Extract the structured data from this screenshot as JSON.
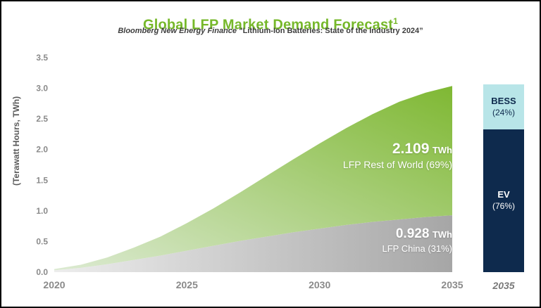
{
  "header": {
    "title": "Global LFP Market Demand Forecast",
    "footnote": "1",
    "source": "Bloomberg New Energy Finance",
    "source_quote": "“Lithium-Ion Batteries: State of the Industry 2024”"
  },
  "colors": {
    "title_green": "#76b82a",
    "axis_text": "#8a8a8a",
    "axis_title": "#595959",
    "green_area_start": "#dcead2",
    "green_area_end": "#7fb833",
    "gray_area_start": "#ededed",
    "gray_area_end": "#a6a6a6",
    "bess_cyan": "#b8e5e8",
    "ev_navy": "#0e2a4d"
  },
  "chart_data": {
    "type": "area",
    "stacked": true,
    "title": "Global LFP Market Demand Forecast¹",
    "subtitle": "Bloomberg New Energy Finance “Lithium-Ion Batteries: State of the Industry 2024”",
    "ylabel": "(Terawatt Hours, TWh)",
    "ylim": [
      0,
      3.5
    ],
    "yticks": [
      "0.0",
      "0.5",
      "1.0",
      "1.5",
      "2.0",
      "2.5",
      "3.0",
      "3.5"
    ],
    "xticks": [
      2020,
      2025,
      2030,
      2035
    ],
    "grid": false,
    "x": [
      2020,
      2021,
      2022,
      2023,
      2024,
      2025,
      2026,
      2027,
      2028,
      2029,
      2030,
      2031,
      2032,
      2033,
      2034,
      2035
    ],
    "series": [
      {
        "name": "LFP China",
        "gradient": [
          "#ededed",
          "#a6a6a6"
        ],
        "values": [
          0.03,
          0.07,
          0.13,
          0.2,
          0.27,
          0.35,
          0.43,
          0.51,
          0.58,
          0.65,
          0.71,
          0.77,
          0.82,
          0.86,
          0.9,
          0.928
        ]
      },
      {
        "name": "LFP Rest of World",
        "gradient": [
          "#dcead2",
          "#7fb833"
        ],
        "values": [
          0.02,
          0.05,
          0.11,
          0.2,
          0.31,
          0.45,
          0.61,
          0.79,
          0.99,
          1.19,
          1.39,
          1.58,
          1.76,
          1.92,
          2.03,
          2.109
        ]
      }
    ],
    "annotations": [
      {
        "value": "2.109",
        "unit": "TWh",
        "label": "LFP Rest of World (69%)"
      },
      {
        "value": "0.928",
        "unit": "TWh",
        "label": "LFP China (31%)"
      }
    ],
    "bar_2035": {
      "xlabel": "2035",
      "segments": [
        {
          "name": "BESS",
          "pct_text": "(24%)",
          "pct": 24,
          "color": "#b8e5e8",
          "text_color": "#0e2a4d"
        },
        {
          "name": "EV",
          "pct_text": "(76%)",
          "pct": 76,
          "color": "#0e2a4d",
          "text_color": "#ffffff"
        }
      ]
    }
  }
}
